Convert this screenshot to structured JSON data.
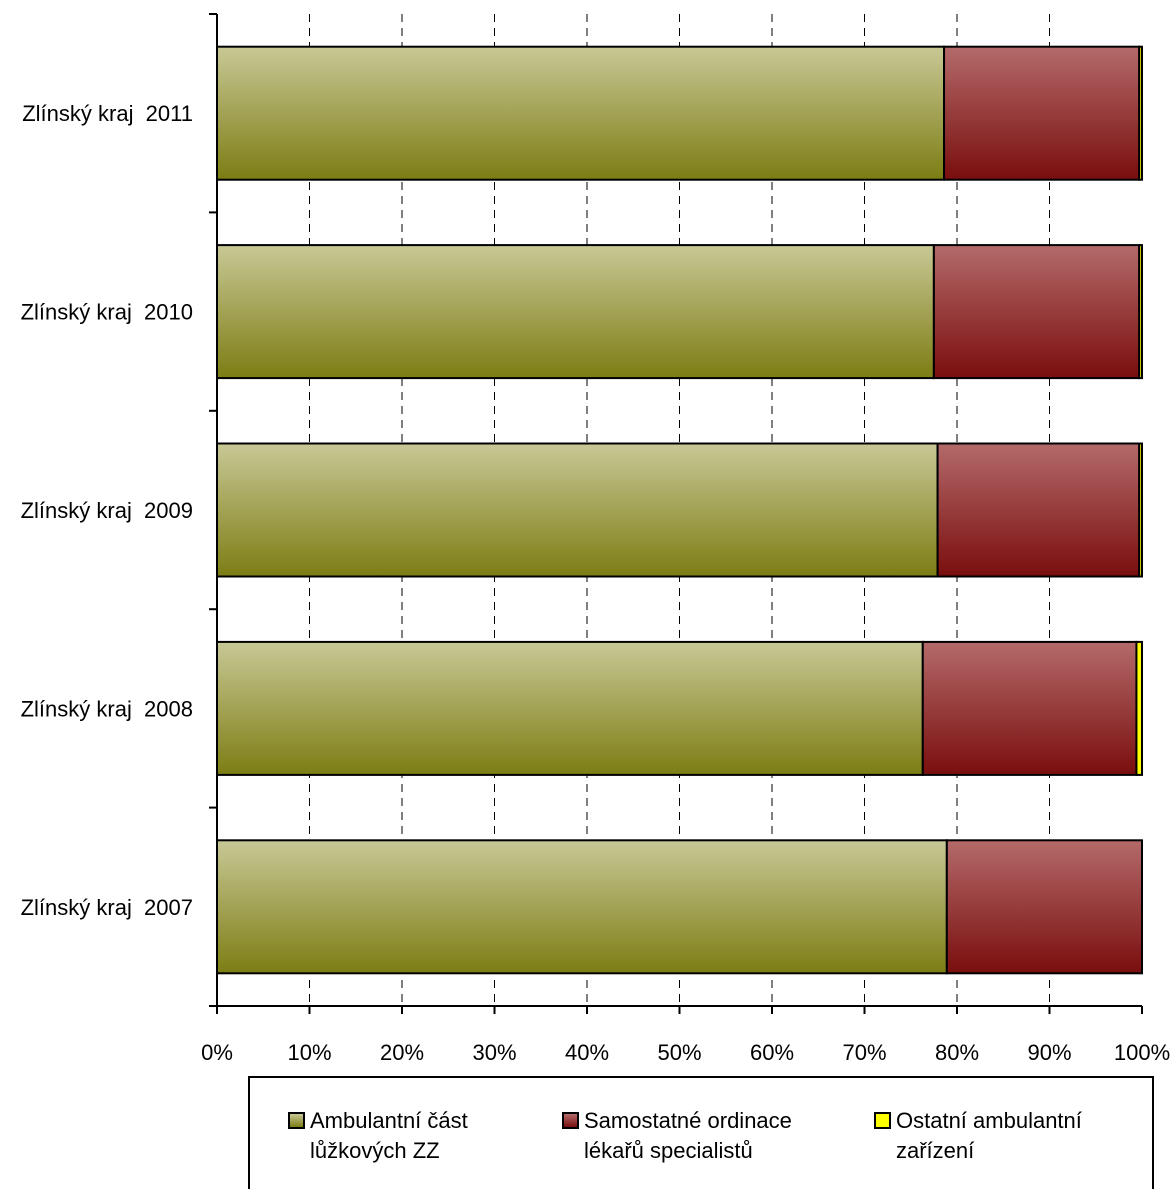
{
  "chart_data": {
    "type": "bar",
    "orientation": "horizontal",
    "stacked": true,
    "normalized": true,
    "categories": [
      "Zlínský kraj  2011",
      "Zlínský kraj  2010",
      "Zlínský kraj  2009",
      "Zlínský kraj  2008",
      "Zlínský kraj  2007"
    ],
    "series": [
      {
        "name": "Ambulantní část\nlůžkových ZZ",
        "values": [
          78.6,
          77.5,
          77.9,
          76.3,
          78.9
        ],
        "color": "#7d7d14",
        "color_light": "#c8c896"
      },
      {
        "name": "Samostatné ordinace\nlékařů specialistů",
        "values": [
          21.1,
          22.2,
          21.8,
          23.1,
          21.1
        ],
        "color": "#7a0e0e",
        "color_light": "#b46a6a"
      },
      {
        "name": "Ostatní ambulantní\nzařízení",
        "values": [
          0.3,
          0.3,
          0.3,
          0.6,
          0.0
        ],
        "color": "#ffff00",
        "color_light": "#ffff00"
      }
    ],
    "xticks": [
      "0%",
      "10%",
      "20%",
      "30%",
      "40%",
      "50%",
      "60%",
      "70%",
      "80%",
      "90%",
      "100%"
    ],
    "xlim": [
      0,
      100
    ],
    "grid": "vertical-dashed",
    "legend": "bottom"
  }
}
